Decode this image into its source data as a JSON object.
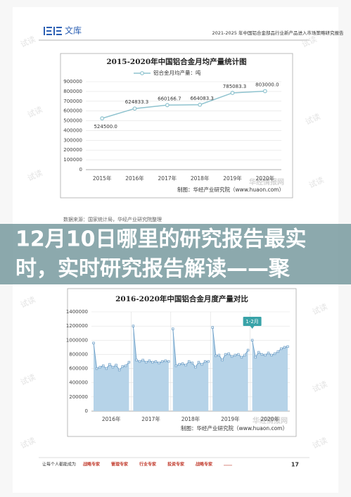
{
  "header": {
    "logo": "文库",
    "title": "2021-2025 年中国铝合金部品行业新产品进入市场策略研究报告"
  },
  "watermark": "试读",
  "charts": [
    {
      "type": "line",
      "title": "2015-2020年中国铝合金月均产量统计图",
      "categories": [
        "2015年",
        "2016年",
        "2017年",
        "2018年",
        "2019年",
        "2020年"
      ],
      "series": [
        {
          "name": "铝合金月均产量：吨",
          "color": "#8fc3cf",
          "values": [
            524500.0,
            624833.3,
            660166.7,
            664083.3,
            785083.3,
            803000.0
          ],
          "value_labels": [
            "524500.0",
            "624833.3",
            "660166.7",
            "664083.3",
            "785083.3",
            "803000.0"
          ]
        }
      ],
      "ylim": [
        0,
        900000
      ],
      "yticks": [
        0,
        100000,
        200000,
        300000,
        400000,
        500000,
        600000,
        700000,
        800000,
        900000
      ],
      "grid": true,
      "legend": "top",
      "credit": "制图：华经产业研究院（www.huaon.com）",
      "logo_watermark": "华经情报网"
    },
    {
      "type": "area",
      "title": "2016-2020年中国铝合金月度产量对比",
      "color": "#b6d3e8",
      "line_color": "#6fa0c8",
      "series": [
        {
          "name": "2016年",
          "values": [
            960000,
            600000,
            620000,
            640000,
            600000,
            660000,
            620000,
            650000,
            580000,
            630000,
            640000,
            690000
          ]
        },
        {
          "name": "2017年",
          "values": [
            1200000,
            720000,
            700000,
            720000,
            690000,
            710000,
            690000,
            700000,
            680000,
            700000,
            710000,
            700000
          ]
        },
        {
          "name": "2018年",
          "values": [
            1160000,
            640000,
            660000,
            670000,
            650000,
            700000,
            680000,
            620000,
            690000,
            660000,
            700000,
            700000
          ]
        },
        {
          "name": "2019年",
          "values": [
            1180000,
            780000,
            790000,
            720000,
            800000,
            810000,
            770000,
            790000,
            800000,
            760000,
            790000,
            860000
          ]
        },
        {
          "name": "2020年",
          "values": [
            1000000,
            760000,
            830000,
            800000,
            790000,
            820000,
            790000,
            810000,
            840000,
            880000,
            900000,
            910000
          ]
        }
      ],
      "annotation": "1-2月",
      "ylim": [
        0,
        1400000
      ],
      "yticks": [
        0,
        200000,
        400000,
        600000,
        800000,
        1000000,
        1200000,
        1400000
      ],
      "grid": true,
      "credit": "制图：华经产业研究院（www.huaon.com）",
      "logo_watermark": "华经情报网"
    }
  ],
  "source": "数据来源：国家统计局，华经产业研究院整理",
  "banner": {
    "lines": [
      "12月10日哪里的研究报告最实",
      "时，实时研究报告解读——聚"
    ]
  },
  "footer": {
    "prefix": "让每个人都能成为",
    "items": [
      "战略专家",
      "管理专家",
      "行业专家",
      "投资专家",
      "战略专家",
      "……"
    ],
    "page": "17"
  }
}
